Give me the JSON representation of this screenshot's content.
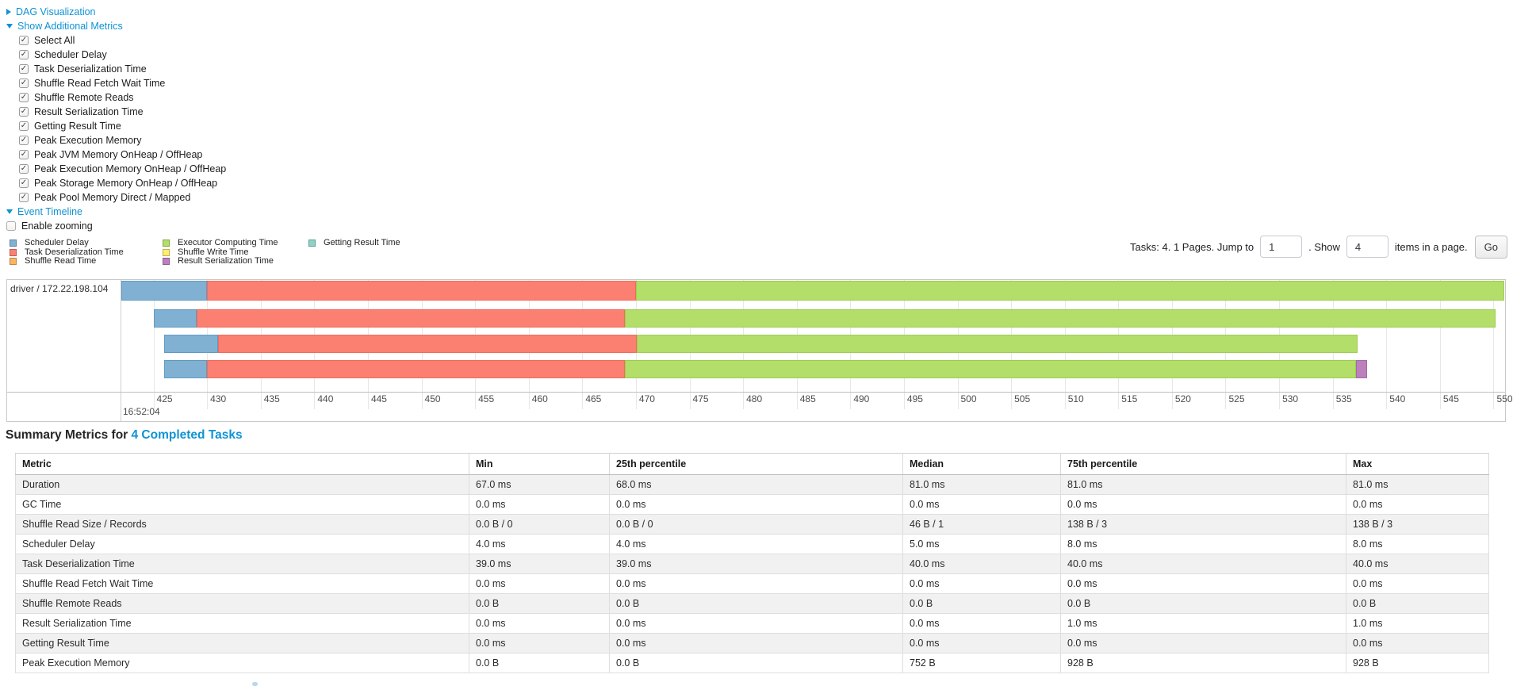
{
  "controls": {
    "items": [
      {
        "kind": "link",
        "arrow": "right",
        "label": "DAG Visualization"
      },
      {
        "kind": "link",
        "arrow": "down",
        "label": "Show Additional Metrics"
      },
      {
        "kind": "checkbox",
        "indent": true,
        "checked": true,
        "label": "Select All"
      },
      {
        "kind": "checkbox",
        "indent": true,
        "checked": true,
        "label": "Scheduler Delay"
      },
      {
        "kind": "checkbox",
        "indent": true,
        "checked": true,
        "label": "Task Deserialization Time"
      },
      {
        "kind": "checkbox",
        "indent": true,
        "checked": true,
        "label": "Shuffle Read Fetch Wait Time"
      },
      {
        "kind": "checkbox",
        "indent": true,
        "checked": true,
        "label": "Shuffle Remote Reads"
      },
      {
        "kind": "checkbox",
        "indent": true,
        "checked": true,
        "label": "Result Serialization Time"
      },
      {
        "kind": "checkbox",
        "indent": true,
        "checked": true,
        "label": "Getting Result Time"
      },
      {
        "kind": "checkbox",
        "indent": true,
        "checked": true,
        "label": "Peak Execution Memory"
      },
      {
        "kind": "checkbox",
        "indent": true,
        "checked": true,
        "label": "Peak JVM Memory OnHeap / OffHeap"
      },
      {
        "kind": "checkbox",
        "indent": true,
        "checked": true,
        "label": "Peak Execution Memory OnHeap / OffHeap"
      },
      {
        "kind": "checkbox",
        "indent": true,
        "checked": true,
        "label": "Peak Storage Memory OnHeap / OffHeap"
      },
      {
        "kind": "checkbox",
        "indent": true,
        "checked": true,
        "label": "Peak Pool Memory Direct / Mapped"
      },
      {
        "kind": "link",
        "arrow": "down",
        "label": "Event Timeline"
      },
      {
        "kind": "checkbox",
        "indent": false,
        "checked": false,
        "label": "Enable zooming"
      }
    ]
  },
  "legend": {
    "columns": [
      [
        {
          "label": "Scheduler Delay",
          "color": "#80B1D3"
        },
        {
          "label": "Task Deserialization Time",
          "color": "#FB8072"
        },
        {
          "label": "Shuffle Read Time",
          "color": "#FDB462"
        }
      ],
      [
        {
          "label": "Executor Computing Time",
          "color": "#B3DE69"
        },
        {
          "label": "Shuffle Write Time",
          "color": "#FFED6F"
        },
        {
          "label": "Result Serialization Time",
          "color": "#BC80BD"
        }
      ],
      [
        {
          "label": "Getting Result Time",
          "color": "#8DD3C7"
        }
      ]
    ]
  },
  "pagination": {
    "tasks_text": "Tasks: 4. 1 Pages. Jump to",
    "jump_value": "1",
    "show_text": ". Show",
    "page_size_value": "4",
    "items_text": "items in a page.",
    "go_label": "Go"
  },
  "chart_data": {
    "type": "timeline",
    "executor_label": "driver / 172.22.198.104",
    "time_axis": {
      "major_label": "16:52:04",
      "unit": "ms within 16:52:04",
      "domain": [
        422,
        551
      ],
      "ticks": [
        425,
        430,
        435,
        440,
        445,
        450,
        455,
        460,
        465,
        470,
        475,
        480,
        485,
        490,
        495,
        500,
        505,
        510,
        515,
        520,
        525,
        530,
        535,
        540,
        545,
        550
      ]
    },
    "series_colors": {
      "scheduler-delay": "#80B1D3",
      "task-deserialization": "#FB8072",
      "shuffle-read": "#FDB462",
      "executor-computing": "#B3DE69",
      "shuffle-write": "#FFED6F",
      "result-serialization": "#BC80BD",
      "getting-result": "#8DD3C7"
    },
    "tasks": [
      {
        "segments": [
          {
            "name": "scheduler-delay",
            "start": 422,
            "end": 430
          },
          {
            "name": "task-deserialization",
            "start": 430,
            "end": 470
          },
          {
            "name": "executor-computing",
            "start": 470,
            "end": 551
          }
        ]
      },
      {
        "segments": [
          {
            "name": "scheduler-delay",
            "start": 425,
            "end": 429
          },
          {
            "name": "task-deserialization",
            "start": 429,
            "end": 469
          },
          {
            "name": "executor-computing",
            "start": 469,
            "end": 550.2
          }
        ]
      },
      {
        "segments": [
          {
            "name": "scheduler-delay",
            "start": 426,
            "end": 431
          },
          {
            "name": "task-deserialization",
            "start": 431,
            "end": 470.1
          },
          {
            "name": "executor-computing",
            "start": 470.1,
            "end": 537.3
          }
        ]
      },
      {
        "segments": [
          {
            "name": "scheduler-delay",
            "start": 426,
            "end": 430
          },
          {
            "name": "task-deserialization",
            "start": 430,
            "end": 469
          },
          {
            "name": "executor-computing",
            "start": 469,
            "end": 537.2
          },
          {
            "name": "result-serialization",
            "start": 537.2,
            "end": 538.2
          }
        ]
      }
    ]
  },
  "summary_table": {
    "title_prefix": "Summary Metrics for",
    "title_link": "4 Completed Tasks",
    "headers": [
      "Metric",
      "Min",
      "25th percentile",
      "Median",
      "75th percentile",
      "Max"
    ],
    "rows": [
      [
        "Duration",
        "67.0 ms",
        "68.0 ms",
        "81.0 ms",
        "81.0 ms",
        "81.0 ms"
      ],
      [
        "GC Time",
        "0.0 ms",
        "0.0 ms",
        "0.0 ms",
        "0.0 ms",
        "0.0 ms"
      ],
      [
        "Shuffle Read Size / Records",
        "0.0 B / 0",
        "0.0 B / 0",
        "46 B / 1",
        "138 B / 3",
        "138 B / 3"
      ],
      [
        "Scheduler Delay",
        "4.0 ms",
        "4.0 ms",
        "5.0 ms",
        "8.0 ms",
        "8.0 ms"
      ],
      [
        "Task Deserialization Time",
        "39.0 ms",
        "39.0 ms",
        "40.0 ms",
        "40.0 ms",
        "40.0 ms"
      ],
      [
        "Shuffle Read Fetch Wait Time",
        "0.0 ms",
        "0.0 ms",
        "0.0 ms",
        "0.0 ms",
        "0.0 ms"
      ],
      [
        "Shuffle Remote Reads",
        "0.0 B",
        "0.0 B",
        "0.0 B",
        "0.0 B",
        "0.0 B"
      ],
      [
        "Result Serialization Time",
        "0.0 ms",
        "0.0 ms",
        "0.0 ms",
        "1.0 ms",
        "1.0 ms"
      ],
      [
        "Getting Result Time",
        "0.0 ms",
        "0.0 ms",
        "0.0 ms",
        "0.0 ms",
        "0.0 ms"
      ],
      [
        "Peak Execution Memory",
        "0.0 B",
        "0.0 B",
        "752 B",
        "928 B",
        "928 B"
      ]
    ]
  },
  "colors": {
    "link_blue": "#0e93d4"
  }
}
